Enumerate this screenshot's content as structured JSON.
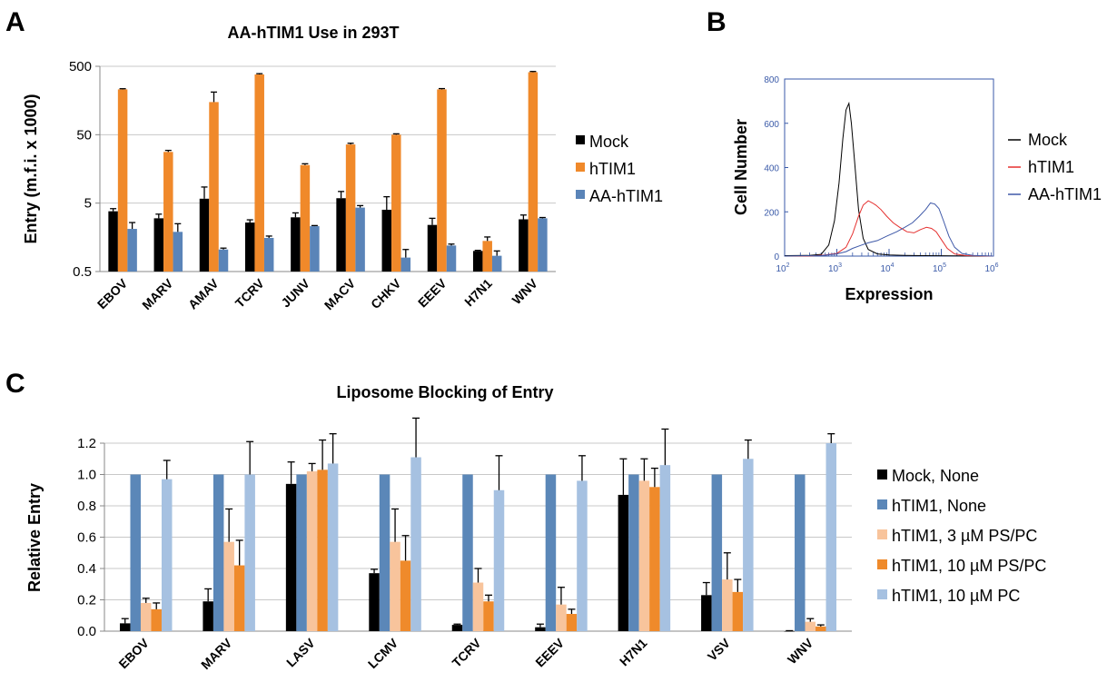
{
  "colors": {
    "mock": "#000000",
    "hTIM1": "#f0892a",
    "AA_hTIM1": "#5a84b8",
    "hTIM1_none": "#5b87b8",
    "ps3": "#f8c49c",
    "ps10": "#ef8a2b",
    "pc10": "#a6c1e1",
    "histMock": "#000000",
    "histHTIM1": "#e5302f",
    "histAA": "#3f59a8",
    "frameB": "#3a5aa8"
  },
  "panels": {
    "A": {
      "letter": "A"
    },
    "B": {
      "letter": "B"
    },
    "C": {
      "letter": "C"
    }
  },
  "chart_data": [
    {
      "panel": "A",
      "type": "bar",
      "title": "AA-hTIM1 Use in 293T",
      "ylabel": "Entry (m.f.i. x 1000)",
      "yscale": "log",
      "ylim": [
        0.5,
        500
      ],
      "yticks": [
        "0.5",
        "5",
        "50",
        "500"
      ],
      "legend_position": "right",
      "categories": [
        "EBOV",
        "MARV",
        "AMAV",
        "TCRV",
        "JUNV",
        "MACV",
        "CHKV",
        "EEEV",
        "H7N1",
        "WNV"
      ],
      "series": [
        {
          "name": "Mock",
          "values": [
            3.8,
            3.0,
            5.8,
            2.6,
            3.1,
            5.9,
            4.0,
            2.4,
            1.0,
            2.9
          ],
          "errors": [
            0.35,
            0.45,
            2.8,
            0.25,
            0.5,
            1.5,
            2.2,
            0.6,
            0.02,
            0.45
          ]
        },
        {
          "name": "hTIM1",
          "values": [
            230,
            28,
            150,
            380,
            18,
            36,
            50,
            230,
            1.4,
            410
          ],
          "errors": [
            5,
            1.5,
            60,
            10,
            0.8,
            1.5,
            1.5,
            6,
            0.2,
            10
          ]
        },
        {
          "name": "AA-hTIM1",
          "values": [
            2.1,
            1.9,
            1.05,
            1.55,
            2.3,
            4.3,
            0.8,
            1.2,
            0.85,
            3.0
          ],
          "errors": [
            0.5,
            0.6,
            0.05,
            0.1,
            0.05,
            0.3,
            0.25,
            0.06,
            0.15,
            0.08
          ]
        }
      ]
    },
    {
      "panel": "B",
      "type": "line",
      "ylabel": "Cell Number",
      "xlabel": "Expression",
      "xscale": "log",
      "xlim": [
        100,
        1000000
      ],
      "ylim": [
        0,
        800
      ],
      "yticks": [
        "0",
        "200",
        "400",
        "600",
        "800"
      ],
      "xtick_bases": [
        "10",
        "10",
        "10",
        "10",
        "10"
      ],
      "xtick_exps": [
        "2",
        "3",
        "4",
        "5",
        "6"
      ],
      "legend_position": "right",
      "series": [
        {
          "name": "Mock",
          "x": [
            100,
            300,
            500,
            700,
            900,
            1100,
            1300,
            1500,
            1700,
            1900,
            2200,
            2600,
            3200,
            4000,
            6000,
            10000,
            20000,
            50000,
            200000,
            1000000
          ],
          "y": [
            2,
            3,
            8,
            50,
            160,
            330,
            530,
            660,
            690,
            600,
            420,
            210,
            80,
            30,
            10,
            5,
            3,
            2,
            1,
            0
          ]
        },
        {
          "name": "hTIM1",
          "x": [
            100,
            300,
            600,
            1000,
            1500,
            2000,
            2600,
            3200,
            4000,
            4800,
            5600,
            7000,
            9000,
            12000,
            16000,
            22000,
            30000,
            40000,
            52000,
            65000,
            80000,
            100000,
            130000,
            180000,
            300000,
            1000000
          ],
          "y": [
            0,
            0,
            5,
            12,
            40,
            100,
            180,
            230,
            250,
            240,
            230,
            210,
            180,
            150,
            130,
            110,
            105,
            120,
            130,
            125,
            110,
            75,
            35,
            10,
            2,
            0
          ]
        },
        {
          "name": "AA-hTIM1",
          "x": [
            100,
            500,
            1000,
            1500,
            2000,
            3000,
            4000,
            6000,
            9000,
            14000,
            20000,
            28000,
            38000,
            50000,
            62000,
            75000,
            90000,
            110000,
            140000,
            180000,
            250000,
            400000,
            1000000
          ],
          "y": [
            0,
            2,
            10,
            20,
            35,
            50,
            60,
            70,
            90,
            110,
            130,
            150,
            180,
            210,
            240,
            235,
            215,
            160,
            90,
            40,
            12,
            3,
            0
          ]
        }
      ]
    },
    {
      "panel": "C",
      "type": "bar",
      "title": "Liposome Blocking of Entry",
      "ylabel": "Relative Entry",
      "ylim": [
        0,
        1.2
      ],
      "yticks": [
        "0.0",
        "0.2",
        "0.4",
        "0.6",
        "0.8",
        "1.0",
        "1.2"
      ],
      "legend_position": "right",
      "categories": [
        "EBOV",
        "MARV",
        "LASV",
        "LCMV",
        "TCRV",
        "EEEV",
        "H7N1",
        "VSV",
        "WNV"
      ],
      "series": [
        {
          "name": "Mock, None",
          "values": [
            0.05,
            0.19,
            0.94,
            0.37,
            0.04,
            0.025,
            0.87,
            0.23,
            0.0
          ],
          "errors": [
            0.03,
            0.08,
            0.14,
            0.025,
            0.005,
            0.02,
            0.23,
            0.08,
            0.003
          ]
        },
        {
          "name": "hTIM1, None",
          "values": [
            1.0,
            1.0,
            1.0,
            1.0,
            1.0,
            1.0,
            1.0,
            1.0,
            1.0
          ],
          "errors": [
            0,
            0,
            0,
            0,
            0,
            0,
            0,
            0,
            0
          ]
        },
        {
          "name": "hTIM1, 3 µM PS/PC",
          "values": [
            0.18,
            0.57,
            1.02,
            0.57,
            0.31,
            0.17,
            0.96,
            0.33,
            0.06
          ],
          "errors": [
            0.03,
            0.21,
            0.05,
            0.21,
            0.09,
            0.11,
            0.14,
            0.17,
            0.02
          ]
        },
        {
          "name": "hTIM1, 10 µM PS/PC",
          "values": [
            0.14,
            0.42,
            1.03,
            0.45,
            0.19,
            0.11,
            0.92,
            0.25,
            0.03
          ],
          "errors": [
            0.04,
            0.16,
            0.19,
            0.16,
            0.04,
            0.03,
            0.12,
            0.08,
            0.01
          ]
        },
        {
          "name": "hTIM1, 10 µM PC",
          "values": [
            0.97,
            1.0,
            1.07,
            1.11,
            0.9,
            0.96,
            1.06,
            1.1,
            1.2
          ],
          "errors": [
            0.12,
            0.21,
            0.19,
            0.25,
            0.22,
            0.16,
            0.23,
            0.12,
            0.06
          ]
        }
      ]
    }
  ]
}
